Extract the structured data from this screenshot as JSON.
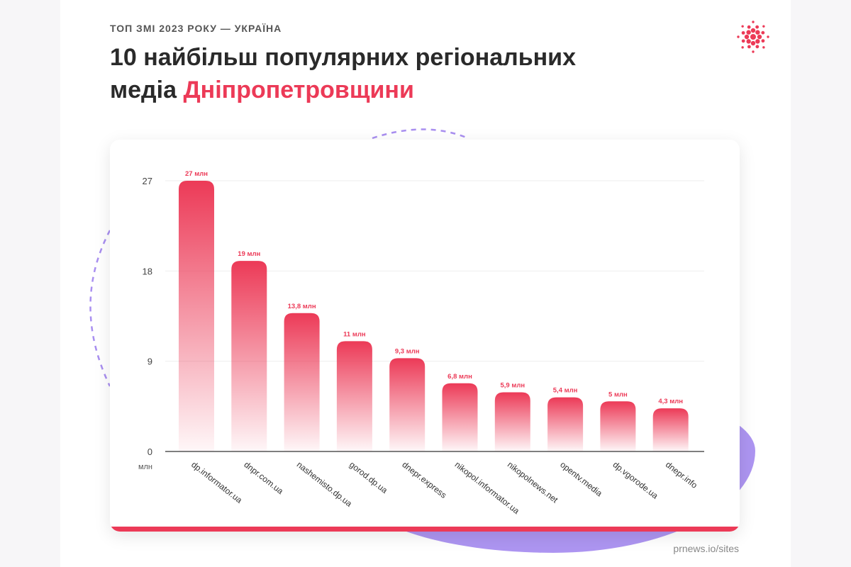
{
  "header": {
    "subtitle": "ТОП ЗМІ 2023 РОКУ — УКРАЇНА",
    "title_line1": "10 найбільш популярних регіональних",
    "title_line2_plain": "медіа ",
    "title_line2_accent": "Дніпропетровщини",
    "accent_color": "#ec3a57"
  },
  "logo": {
    "icon": "dot-burst-logo-icon"
  },
  "source": "prnews.io/sites",
  "chart_data": {
    "type": "bar",
    "categories": [
      "dp.informator.ua",
      "dnpr.com.ua",
      "nashemisto.dp.ua",
      "gorod.dp.ua",
      "dnepr.express",
      "nikopol.informator.ua",
      "nikopolnews.net",
      "opentv.media",
      "dp.vgorode.ua",
      "dnepr.info"
    ],
    "values": [
      27,
      19,
      13.8,
      11,
      9.3,
      6.8,
      5.9,
      5.4,
      5,
      4.3
    ],
    "data_labels": [
      "27 млн",
      "19 млн",
      "13,8 млн",
      "11 млн",
      "9,3 млн",
      "6,8 млн",
      "5,9 млн",
      "5,4 млн",
      "5 млн",
      "4,3 млн"
    ],
    "yticks": [
      0,
      9,
      18,
      27
    ],
    "ylim": [
      0,
      27
    ],
    "yunit": "млн",
    "grid": true,
    "bar_color": "#ec3a57"
  }
}
